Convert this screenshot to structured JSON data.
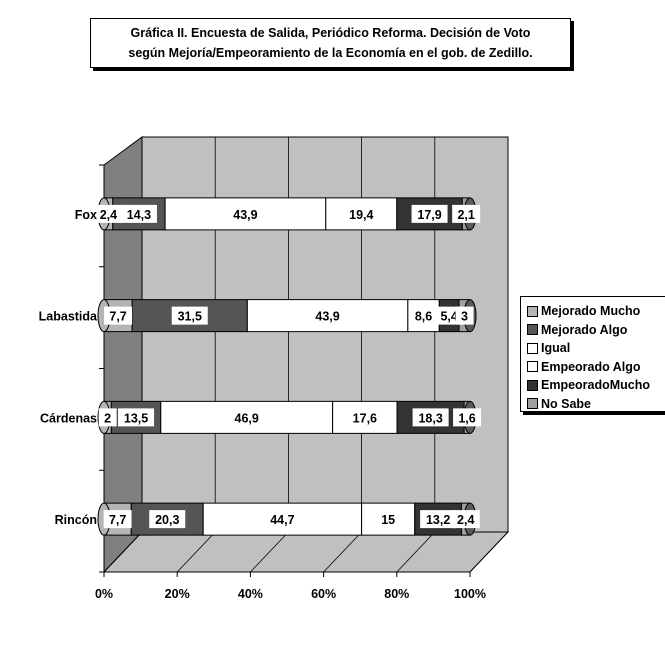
{
  "chart_data": {
    "type": "bar",
    "orientation": "horizontal",
    "stacked": "percent",
    "three_d": true,
    "title_lines": [
      "Gráfica II. Encuesta de Salida, Periódico Reforma. Decisión de Voto",
      "según  Mejoría/Empeoramiento de la Economía en el gob. de Zedillo."
    ],
    "categories": [
      "Fox",
      "Labastida",
      "Cárdenas",
      "Rincón"
    ],
    "series": [
      {
        "name": "Mejorado Mucho",
        "color": "#b4b4b4",
        "values": [
          2.4,
          7.7,
          2,
          7.7
        ],
        "labels": [
          "2,4",
          "7,7",
          "2",
          "7,7"
        ]
      },
      {
        "name": "Mejorado Algo",
        "color": "#555555",
        "values": [
          14.3,
          31.5,
          13.5,
          20.3
        ],
        "labels": [
          "14,3",
          "31,5",
          "13,5",
          "20,3"
        ]
      },
      {
        "name": "Igual",
        "color": "#ffffff",
        "values": [
          43.9,
          43.9,
          46.9,
          44.7
        ],
        "labels": [
          "43,9",
          "43,9",
          "46,9",
          "44,7"
        ]
      },
      {
        "name": "Empeorado Algo",
        "color": "#ffffff",
        "values": [
          19.4,
          8.6,
          17.6,
          15
        ],
        "labels": [
          "19,4",
          "8,6",
          "17,6",
          "15"
        ]
      },
      {
        "name": "EmpeoradoMucho",
        "color": "#333333",
        "values": [
          17.9,
          5.4,
          18.3,
          13.2
        ],
        "labels": [
          "17,9",
          "5,4",
          "18,3",
          "13,2"
        ]
      },
      {
        "name": "No Sabe",
        "color": "#a0a0a0",
        "values": [
          2.1,
          3,
          1.6,
          2.4
        ],
        "labels": [
          "2,1",
          "3",
          "1,6",
          "2,4"
        ]
      }
    ],
    "x_ticks": [
      "0%",
      "20%",
      "40%",
      "60%",
      "80%",
      "100%"
    ],
    "xlim": [
      0,
      100
    ],
    "grid": true,
    "legend": "right",
    "colors": {
      "wall": "#c0c0c0",
      "side_wall": "#808080",
      "floor": "#c0c0c0",
      "background": "#ffffff"
    }
  }
}
